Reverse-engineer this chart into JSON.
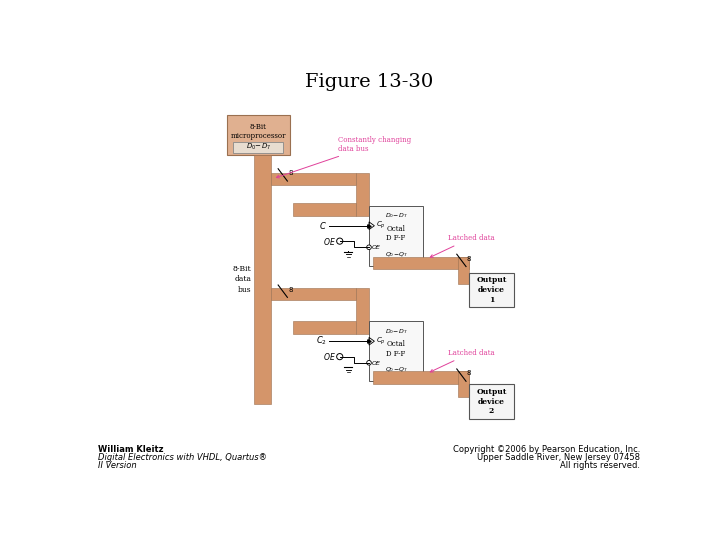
{
  "title": "Figure 13-30",
  "title_fontsize": 14,
  "bg_color": "#ffffff",
  "bus_color": "#d4956a",
  "bus_light": "#e0b090",
  "chip_fill": "#f8f8f8",
  "chip_edge": "#555555",
  "pink": "#e0409a",
  "bottom_left_lines": [
    "William Kleitz",
    "Digital Electronics with VHDL, Quartus®",
    "II Version"
  ],
  "bottom_right_lines": [
    "Copyright ©2006 by Pearson Education, Inc.",
    "Upper Saddle River, New Jersey 07458",
    "All rights reserved."
  ],
  "author_fontsize": 6,
  "copyright_fontsize": 6
}
